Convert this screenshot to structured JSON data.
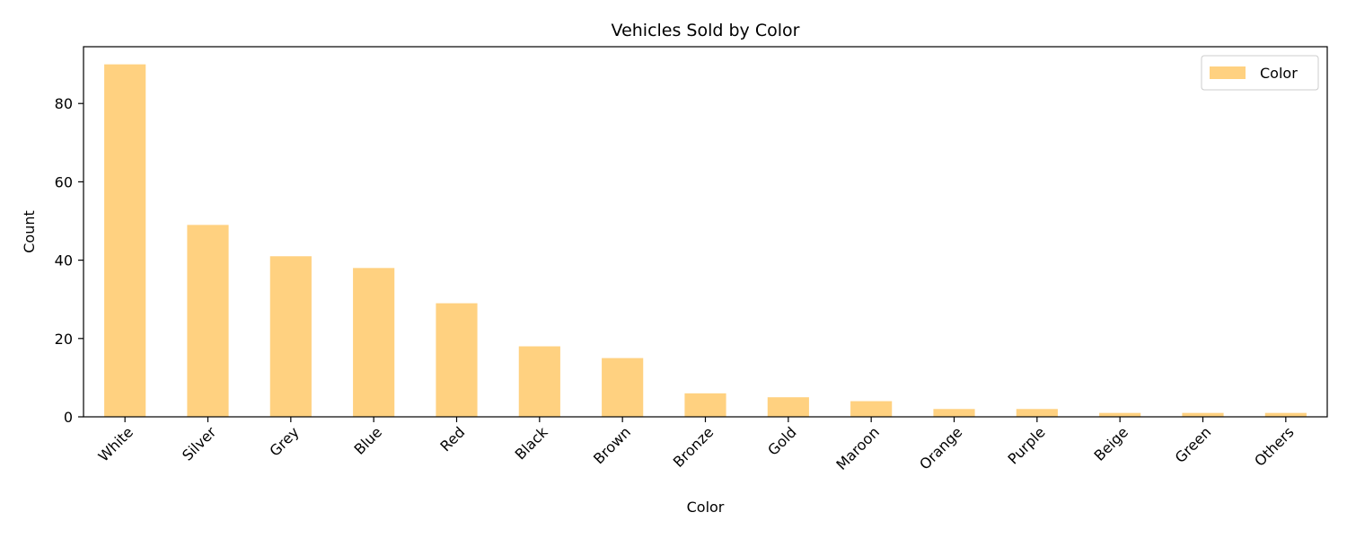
{
  "chart_data": {
    "type": "bar",
    "title": "Vehicles Sold by Color",
    "xlabel": "Color",
    "ylabel": "Count",
    "categories": [
      "White",
      "Silver",
      "Grey",
      "Blue",
      "Red",
      "Black",
      "Brown",
      "Bronze",
      "Gold",
      "Maroon",
      "Orange",
      "Purple",
      "Beige",
      "Green",
      "Others"
    ],
    "series": [
      {
        "name": "Color",
        "values": [
          90,
          49,
          41,
          38,
          29,
          18,
          15,
          6,
          5,
          4,
          2,
          2,
          1,
          1,
          1
        ],
        "color": "#ffd180"
      }
    ],
    "ylim": [
      0,
      94.5
    ],
    "yticks": [
      0,
      20,
      40,
      60,
      80
    ],
    "grid": false,
    "legend_position": "top-right"
  }
}
